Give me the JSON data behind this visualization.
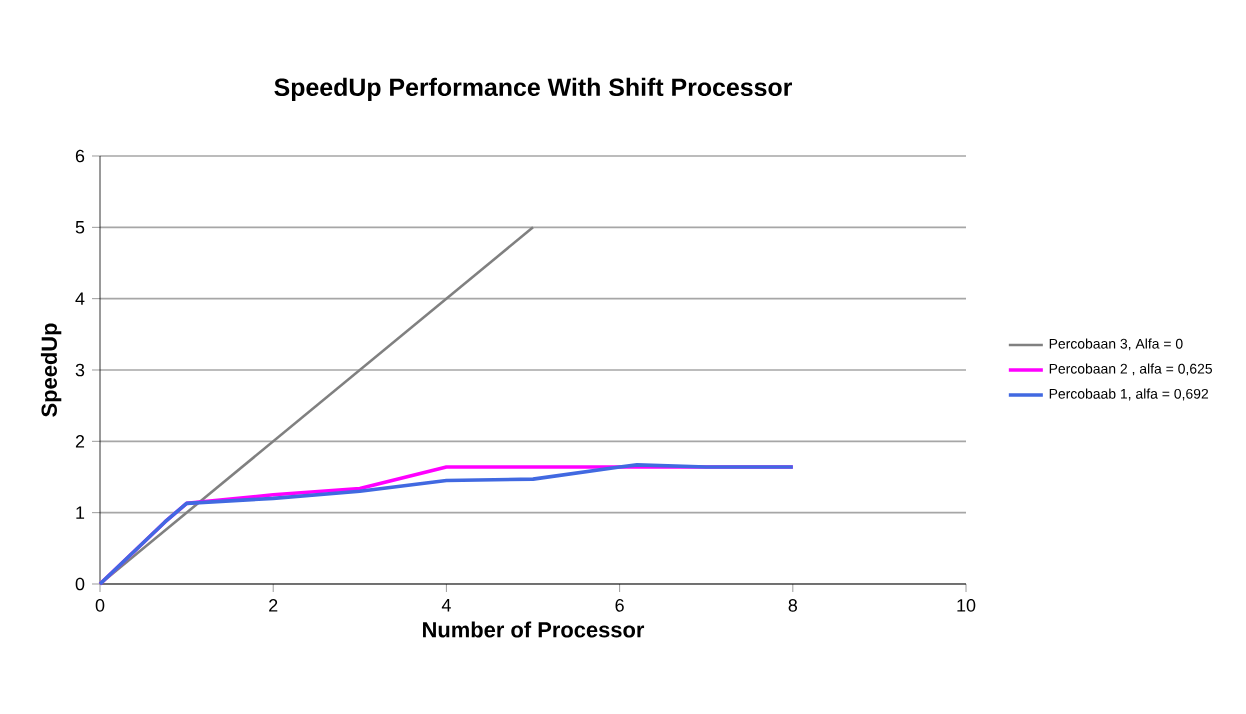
{
  "chart_data": {
    "type": "line",
    "title": "SpeedUp Performance With Shift Processor",
    "xlabel": "Number of Processor",
    "ylabel": "SpeedUp",
    "xlim": [
      0,
      10
    ],
    "xticks": [
      0,
      2,
      4,
      6,
      8,
      10
    ],
    "ylim": [
      0,
      6
    ],
    "yticks": [
      0,
      1,
      2,
      3,
      4,
      5,
      6
    ],
    "grid": "y",
    "legend": "right",
    "series": [
      {
        "name": "Percobaan 3, Alfa = 0",
        "color": "#808080",
        "x": [
          0,
          5
        ],
        "values": [
          0,
          5
        ]
      },
      {
        "name": "Percobaan 2 , alfa = 0,625",
        "color": "#ff00ff",
        "x": [
          0,
          0.75,
          1,
          2,
          3,
          4,
          5,
          6,
          7,
          8
        ],
        "values": [
          0,
          0.87,
          1.13,
          1.25,
          1.34,
          1.64,
          1.64,
          1.64,
          1.64,
          1.64
        ]
      },
      {
        "name": "Percobaab 1, alfa = 0,692",
        "color": "#4169e1",
        "x": [
          0,
          0.75,
          1,
          2,
          3,
          4,
          5,
          6,
          6.2,
          7,
          8
        ],
        "values": [
          0,
          0.87,
          1.13,
          1.2,
          1.3,
          1.45,
          1.47,
          1.64,
          1.67,
          1.64,
          1.64
        ]
      }
    ]
  }
}
